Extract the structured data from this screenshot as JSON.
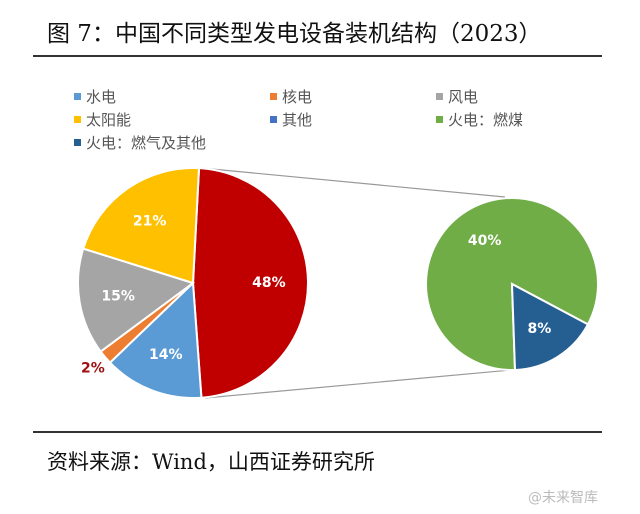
{
  "title": "图 7：中国不同类型发电设备装机结构（2023）",
  "source": "资料来源：Wind，山西证券研究所",
  "watermark": "@未来智库",
  "chart_data": {
    "type": "pie-of-pie",
    "title": "图 7：中国不同类型发电设备装机结构（2023）",
    "legend": [
      "水电",
      "核电",
      "风电",
      "太阳能",
      "其他",
      "火电：燃煤",
      "火电：燃气及其他"
    ],
    "legend_placement": "top",
    "main_pie": [
      {
        "name": "火电",
        "value": 48,
        "label": "48%",
        "color": "#c00000"
      },
      {
        "name": "水电",
        "value": 14,
        "label": "14%",
        "color": "#5b9bd5"
      },
      {
        "name": "核电",
        "value": 2,
        "label": "2%",
        "color": "#ed7d31"
      },
      {
        "name": "风电",
        "value": 15,
        "label": "15%",
        "color": "#a5a5a5"
      },
      {
        "name": "太阳能",
        "value": 21,
        "label": "21%",
        "color": "#ffc000"
      },
      {
        "name": "其他",
        "value": 0,
        "label": "",
        "color": "#4472c4"
      }
    ],
    "secondary_pie": [
      {
        "name": "火电：燃煤",
        "value": 40,
        "label": "40%",
        "color": "#70ad47"
      },
      {
        "name": "火电：燃气及其他",
        "value": 8,
        "label": "8%",
        "color": "#255e91"
      }
    ]
  }
}
